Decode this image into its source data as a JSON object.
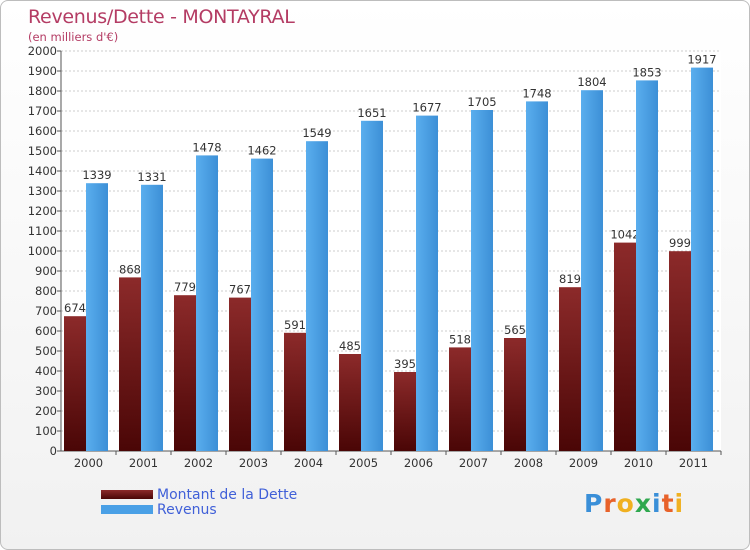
{
  "header": {
    "title": "Revenus/Dette - MONTAYRAL",
    "subtitle": "(en milliers d'€)"
  },
  "logo": {
    "text": "Proxiti",
    "letter_colors": [
      "#3a8fd8",
      "#e8622a",
      "#f0b020",
      "#2fa84f",
      "#3a8fd8",
      "#e8622a",
      "#f0b020"
    ]
  },
  "colors": {
    "debt": "#7a1818",
    "revenue": "#4aa0e6",
    "grid": "#cccccc",
    "axis": "#555555"
  },
  "chart_data": {
    "type": "bar",
    "categories": [
      "2000",
      "2001",
      "2002",
      "2003",
      "2004",
      "2005",
      "2006",
      "2007",
      "2008",
      "2009",
      "2010",
      "2011"
    ],
    "series": [
      {
        "name": "Montant de la Dette",
        "values": [
          674,
          868,
          779,
          767,
          591,
          485,
          395,
          518,
          565,
          819,
          1042,
          999
        ]
      },
      {
        "name": "Revenus",
        "values": [
          1339,
          1331,
          1478,
          1462,
          1549,
          1651,
          1677,
          1705,
          1748,
          1804,
          1853,
          1917
        ]
      }
    ],
    "title": "Revenus/Dette - MONTAYRAL",
    "ylabel": "(en milliers d'€)",
    "ylim": [
      0,
      2000
    ],
    "ytick_step": 100,
    "grid": true,
    "legend_position": "bottom-left"
  }
}
